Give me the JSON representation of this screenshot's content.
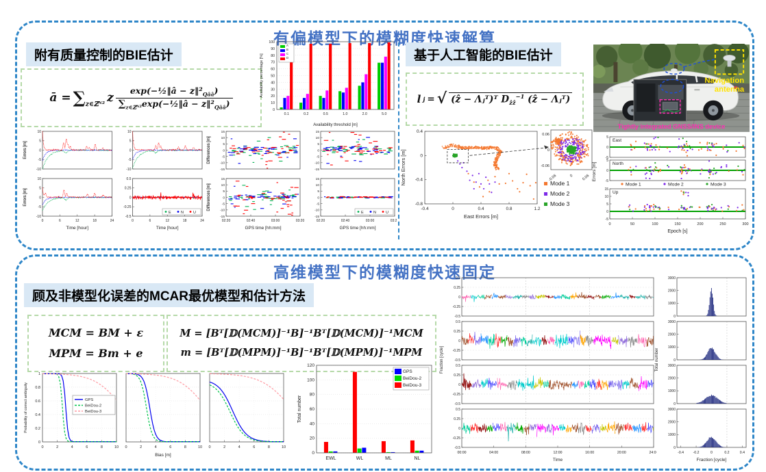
{
  "panels": {
    "biased": {
      "title": "有偏模型下的模糊度快速解算",
      "left_heading": "附有质量控制的BIE估计",
      "right_heading": "基于人工智能的BIE估计"
    },
    "highdim": {
      "title": "高维模型下的模糊度快速固定",
      "heading": "顾及非模型化误差的MCAR最优模型和估计方法"
    }
  },
  "formulas": {
    "bie": {
      "lhs": "ā =",
      "sum": "∑",
      "sum_sub": "z∈ℤᴺ²",
      "z": "z",
      "num_main": "exp(−½‖â − z‖²",
      "num_sub": "Qââ",
      "num_close": ")",
      "den_sum": "∑",
      "den_sum_sub": "z∈ℤᴺ²",
      "den_main": "exp(−½‖â − z‖²",
      "den_sub": "Qââ",
      "den_close": ")"
    },
    "ai": {
      "l": "l",
      "j": "j",
      "eq": " = ",
      "sqrt": "√",
      "r1": "(ẑ − Λⱼᵀ)ᵀ D",
      "rsub": "ẑẑ",
      "rsup": "−1",
      "r2": " (ẑ − Λⱼᵀ)"
    },
    "mcar": {
      "line1": "MCM = BM + ε",
      "line2": "MPM = Bm + e"
    },
    "mest": {
      "line1": "M = [Bᵀ[𝔻(MCM)]⁻¹B]⁻¹Bᵀ[𝔻(MCM)]⁻¹MCM",
      "line2": "m = [Bᵀ[𝔻(MPM)]⁻¹B]⁻¹Bᵀ[𝔻(MPM)]⁻¹MPM"
    }
  },
  "car": {
    "nav1": "Navigation",
    "nav2": "antenna",
    "device": "Tightly integrated GNSS/INS device"
  },
  "chart_data": [
    {
      "id": "availability",
      "type": "grouped_bar",
      "title": "",
      "xlabel": "Availability threshold [m]",
      "ylabel": "Availability percentage [%]",
      "ylim": [
        0,
        100
      ],
      "ytick_step": 10,
      "categories": [
        "0.1",
        "0.2",
        "0.5",
        "1.0",
        "2.0",
        "5.0"
      ],
      "series": [
        {
          "name": "A",
          "color": "#00cc00",
          "values": [
            3,
            10,
            20,
            27,
            35,
            69
          ]
        },
        {
          "name": "B",
          "color": "#0000ff",
          "values": [
            17,
            17,
            17,
            25,
            40,
            69
          ]
        },
        {
          "name": "C",
          "color": "#ff00ff",
          "values": [
            20,
            23,
            28,
            32,
            52,
            78
          ]
        },
        {
          "name": "D",
          "color": "#ff0000",
          "values": [
            97,
            97,
            97,
            98,
            98,
            99
          ]
        }
      ],
      "legend_pos": "tl"
    },
    {
      "id": "errors_time",
      "type": "noise_grid",
      "ylabel": "Errors [m]",
      "xlabel": "Time [hour]",
      "xlim": [
        0,
        24
      ],
      "xticks": [
        0,
        6,
        12,
        18,
        24
      ],
      "legend_series": [
        {
          "name": "E",
          "color": "#00b050"
        },
        {
          "name": "N",
          "color": "#0000f0"
        },
        {
          "name": "U",
          "color": "#ff0000"
        }
      ],
      "panels": [
        {
          "ylim": [
            -10,
            10
          ],
          "yticks": [
            10,
            5,
            0,
            -5,
            -10
          ],
          "spike": 10,
          "gdip": -10,
          "bdip": -5.5,
          "bursts": [
            [
              7.3,
              4
            ],
            [
              8.2,
              6
            ],
            [
              8.8,
              3
            ],
            [
              9.6,
              2
            ],
            [
              15.3,
              2
            ],
            [
              16.1,
              1.5
            ],
            [
              18.2,
              3
            ],
            [
              20.8,
              1.2
            ]
          ]
        },
        {
          "ylim": [
            -10,
            10
          ],
          "yticks": [
            10,
            5,
            0,
            -5,
            -10
          ],
          "spike": 10,
          "gdip": -9.5,
          "bdip": -5,
          "bursts": [
            [
              8,
              2
            ],
            [
              9,
              4
            ],
            [
              9.7,
              2
            ],
            [
              15.8,
              1.5
            ],
            [
              18.2,
              2.4
            ],
            [
              21,
              1.3
            ]
          ]
        },
        {
          "ylim": [
            -10,
            10
          ],
          "yticks": [
            10,
            5,
            0,
            -5,
            -10
          ],
          "spike": 5,
          "gdip": -7,
          "bdip": -4,
          "bursts": [
            [
              1,
              2
            ],
            [
              7.4,
              4
            ],
            [
              8.4,
              2
            ],
            [
              15.5,
              1.5
            ],
            [
              18,
              2
            ],
            [
              21,
              1
            ]
          ]
        },
        {
          "ylim": [
            -0.5,
            0.5
          ],
          "yticks": [
            0.5,
            0.25,
            0,
            -0.25,
            -0.5
          ],
          "style": "flat",
          "legend": true
        }
      ]
    },
    {
      "id": "differences",
      "type": "dash_grid",
      "ylabel": "Differences [m]",
      "xlabel": "GPS time [hh:mm]",
      "yticks": [
        15,
        10,
        5,
        0,
        -5,
        -10,
        -15
      ],
      "ylim": [
        -15,
        15
      ],
      "xticklabels": [
        "02:20",
        "02:40",
        "03:00",
        "03:20"
      ],
      "legend_series": [
        {
          "name": "E",
          "color": "#00b050"
        },
        {
          "name": "N",
          "color": "#0000f0"
        },
        {
          "name": "U",
          "color": "#ff0000"
        }
      ],
      "panels": [
        {
          "spread": 4.5
        },
        {
          "spread": 4.5
        },
        {
          "spread": 4
        },
        {
          "spread": 0.35,
          "legend": true
        }
      ]
    },
    {
      "id": "scatter_modes",
      "type": "scatter_modes",
      "main": {
        "xlabel": "East Errors [m]",
        "ylabel": "North Errors [m]",
        "xlim": [
          -0.4,
          1.2
        ],
        "xticks": [
          -0.4,
          0,
          0.4,
          0.8,
          1.2
        ],
        "ylim": [
          -0.8,
          0.4
        ],
        "yticks": [
          0.4,
          0,
          -0.4,
          -0.8
        ]
      },
      "inset": {
        "ticks": [
          -0.06,
          0,
          0.06
        ]
      },
      "modes": [
        {
          "name": "Mode 1",
          "color": "#f4772e"
        },
        {
          "name": "Mode 2",
          "color": "#7d2ae8"
        },
        {
          "name": "Mode 3",
          "color": "#28a428"
        }
      ],
      "outliers_orange": [
        [
          0.22,
          -0.3
        ],
        [
          0.3,
          -0.44
        ],
        [
          0.38,
          -0.52
        ],
        [
          0.5,
          -0.41
        ],
        [
          0.52,
          -0.6
        ],
        [
          0.6,
          -0.35
        ],
        [
          0.66,
          -0.47
        ],
        [
          0.75,
          -0.46
        ],
        [
          0.8,
          -0.3
        ],
        [
          0.85,
          -0.42
        ],
        [
          0.92,
          -0.55
        ],
        [
          1.0,
          -0.45
        ],
        [
          1.05,
          -0.31
        ],
        [
          1.1,
          -0.5
        ],
        [
          1.15,
          -0.72
        ],
        [
          1.18,
          -0.45
        ],
        [
          0.43,
          -0.68
        ],
        [
          0.95,
          -0.6
        ]
      ],
      "points_purple": [
        [
          0.07,
          -0.09
        ],
        [
          0.1,
          -0.14
        ],
        [
          0.13,
          -0.2
        ],
        [
          0.2,
          -0.26
        ],
        [
          0.24,
          -0.41
        ],
        [
          0.28,
          -0.33
        ],
        [
          0.3,
          -0.55
        ],
        [
          0.33,
          -0.44
        ],
        [
          0.37,
          -0.3
        ],
        [
          0.4,
          -0.47
        ],
        [
          0.44,
          -0.55
        ],
        [
          0.47,
          -0.36
        ],
        [
          0.52,
          -0.47
        ],
        [
          0.55,
          -0.61
        ],
        [
          0.15,
          -0.12
        ],
        [
          0.6,
          -0.44
        ]
      ]
    },
    {
      "id": "enu_scatter",
      "type": "enu",
      "ylabel": "Errors [m]",
      "xlabel": "Epoch [s]",
      "xlim": [
        0,
        300
      ],
      "xticks": [
        0,
        50,
        100,
        150,
        200,
        250,
        300
      ],
      "zero_line_color": "#00a000",
      "panels": [
        {
          "label": "East",
          "ylim": [
            -5,
            5
          ],
          "yticks": [
            -5,
            0,
            5
          ]
        },
        {
          "label": "North",
          "ylim": [
            -5,
            5
          ],
          "yticks": [
            -5,
            0,
            5
          ]
        },
        {
          "label": "Up",
          "ylim": [
            -5,
            15
          ],
          "yticks": [
            -5,
            0,
            5,
            10,
            15
          ]
        }
      ],
      "clusters": [
        [
          45,
          4
        ],
        [
          55,
          2
        ],
        [
          80,
          6
        ],
        [
          90,
          8
        ],
        [
          100,
          6
        ],
        [
          110,
          4
        ],
        [
          130,
          2
        ],
        [
          155,
          4
        ],
        [
          162,
          9
        ],
        [
          170,
          6
        ],
        [
          180,
          3
        ],
        [
          200,
          3
        ],
        [
          218,
          7
        ],
        [
          225,
          6
        ],
        [
          232,
          4
        ],
        [
          250,
          2
        ],
        [
          262,
          3
        ],
        [
          282,
          2
        ],
        [
          295,
          3
        ]
      ],
      "modes": [
        {
          "name": "Mode 1",
          "color": "#f4772e"
        },
        {
          "name": "Mode 2",
          "color": "#7d2ae8"
        },
        {
          "name": "Mode 3",
          "color": "#28a428"
        }
      ]
    },
    {
      "id": "prob_curves",
      "type": "curves",
      "ylabel": "Probability of correct ambiguity",
      "xlabel": "Bias [m]",
      "ylim": [
        0,
        1
      ],
      "yticks": [
        0,
        0.2,
        0.4,
        0.6,
        0.8,
        1
      ],
      "xticks": [
        0,
        2,
        4,
        6,
        8,
        10
      ],
      "series_styles": [
        {
          "name": "GPS",
          "color": "#0000ee",
          "dash": false
        },
        {
          "name": "BeiDou-2",
          "color": "#00c44a",
          "dash": true
        },
        {
          "name": "BeiDou-3",
          "color": "#ff9aa2",
          "dash": true
        }
      ],
      "panels": [
        {
          "curves": [
            [
              1,
              6,
              3.15
            ],
            [
              1,
              6,
              2.7
            ],
            [
              1,
              0.55,
              10.8
            ]
          ],
          "legend": true
        },
        {
          "curves": [
            [
              1,
              2.6,
              3.2
            ],
            [
              1,
              2.6,
              2.75
            ],
            [
              1,
              0.55,
              10.8
            ]
          ]
        },
        {
          "curves": [
            [
              0.91,
              1.05,
              3.1
            ],
            [
              0.88,
              1.05,
              2.75
            ],
            [
              1,
              0.5,
              11
            ]
          ]
        }
      ]
    },
    {
      "id": "total_number",
      "type": "grouped_bar",
      "xlabel": "",
      "ylabel": "Total number",
      "ylim": [
        0,
        120
      ],
      "ytick_step": 20,
      "categories": [
        "EWL",
        "WL",
        "ML",
        "NL"
      ],
      "series": [
        {
          "name": "BeiDou-3",
          "color": "#ff0000",
          "values": [
            15,
            111,
            16,
            17
          ]
        },
        {
          "name": "BeiDou-2",
          "color": "#00dd00",
          "values": [
            2,
            6,
            1,
            3
          ]
        },
        {
          "name": "GPS",
          "color": "#0000ff",
          "values": [
            2,
            7,
            1,
            3
          ]
        }
      ],
      "legend_order": [
        "GPS",
        "BeiDou-2",
        "BeiDou-3"
      ],
      "legend_pos": "tr"
    },
    {
      "id": "fraction_time",
      "type": "fraction_series",
      "ylabel": "Fraction [cycle]",
      "xlabel": "Time",
      "ylim": [
        -0.5,
        0.5
      ],
      "yticks": [
        0.5,
        0.25,
        0,
        -0.25,
        -0.5
      ],
      "xticklabels": [
        "00:00",
        "04:00",
        "08:00",
        "12:00",
        "16:00",
        "20:00",
        "24:00"
      ],
      "panels": [
        {
          "amp": 0.055
        },
        {
          "amp": 0.14
        },
        {
          "amp": 0.12
        },
        {
          "amp": 0.12
        }
      ],
      "palette": [
        "#ff00ff",
        "#4444ff",
        "#ffa500",
        "#00cccc",
        "#00aa00",
        "#888888",
        "#8b0000",
        "#9370db",
        "#ff69b4",
        "#1e90ff",
        "#a0522d",
        "#00ce9a",
        "#c6c600",
        "#ff3333",
        "#7b68ee",
        "#20b2aa"
      ]
    },
    {
      "id": "fraction_hist",
      "type": "hist_stack",
      "ylabel": "Total number",
      "xlabel": "Fraction [cycle]",
      "ylim": [
        0,
        3000
      ],
      "yticks": [
        0,
        1000,
        2000,
        3000
      ],
      "xticks": [
        -0.4,
        -0.2,
        0,
        0.2,
        0.4
      ],
      "color": "#0d1975",
      "panels": [
        {
          "peak": 2100,
          "sigma": 0.022
        },
        {
          "peak": 950,
          "sigma": 0.05
        },
        {
          "peak": 650,
          "sigma": 0.08
        },
        {
          "peak": 800,
          "sigma": 0.06
        }
      ]
    }
  ]
}
